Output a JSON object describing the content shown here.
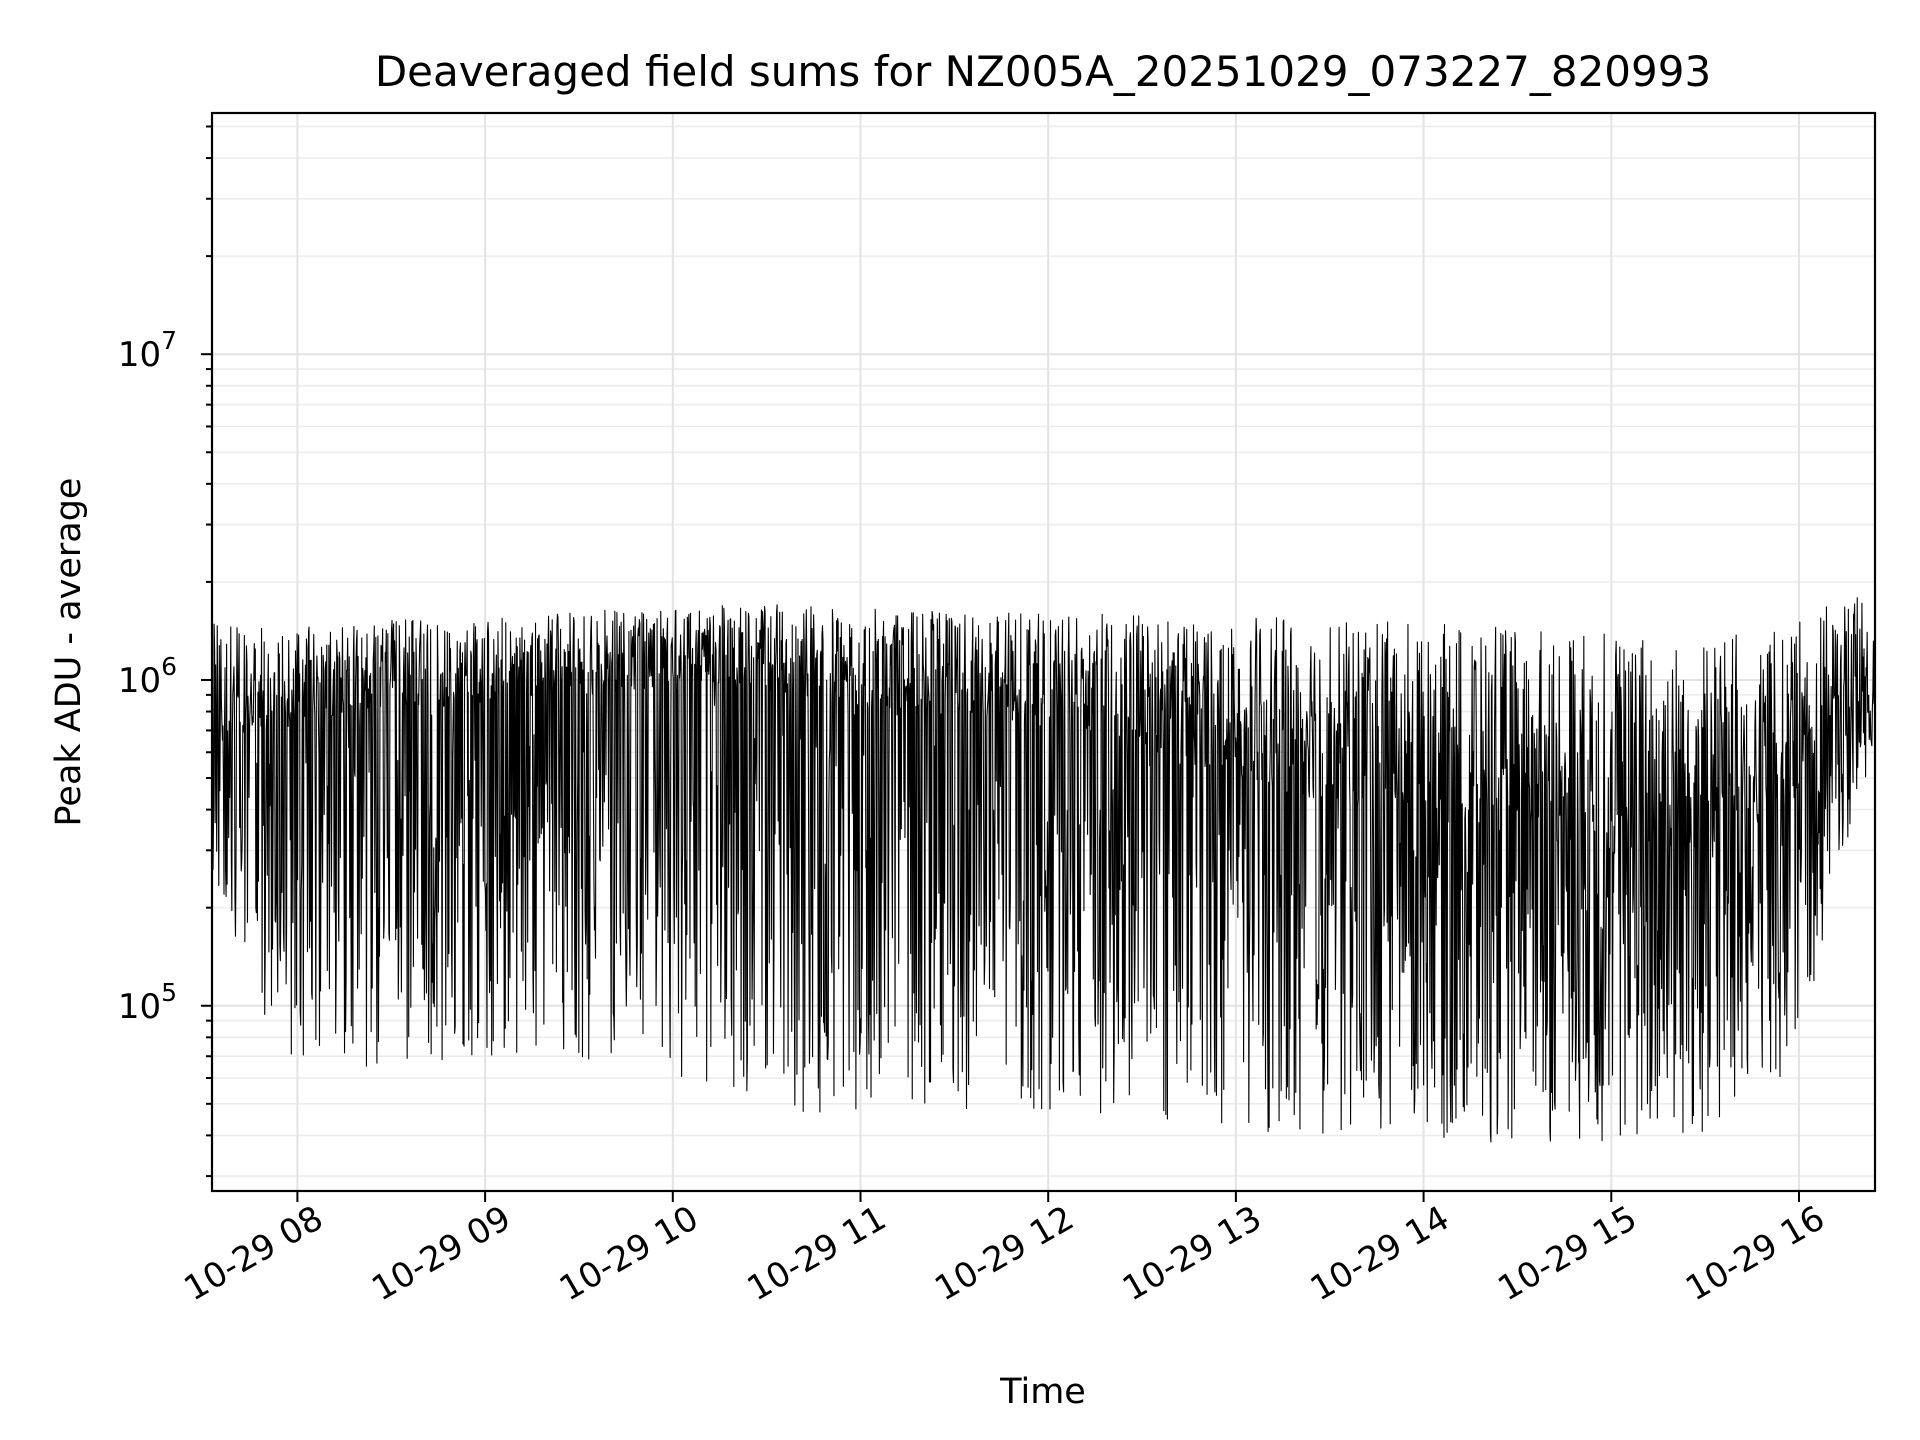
{
  "chart_data": {
    "type": "line",
    "title": "Deaveraged field sums for NZ005A_20251029_073227_820993",
    "xlabel": "Time",
    "ylabel": "Peak ADU - average",
    "yscale": "log",
    "ylim": [
      27000,
      55000000
    ],
    "xlim_hours": [
      7.545,
      16.405
    ],
    "x_tick_labels": [
      "10-29 08",
      "10-29 09",
      "10-29 10",
      "10-29 11",
      "10-29 12",
      "10-29 13",
      "10-29 14",
      "10-29 15",
      "10-29 16"
    ],
    "x_tick_hours": [
      8,
      9,
      10,
      11,
      12,
      13,
      14,
      15,
      16
    ],
    "y_ticks": [
      {
        "value": 100000,
        "base": "10",
        "exponent": "5"
      },
      {
        "value": 1000000,
        "base": "10",
        "exponent": "6"
      },
      {
        "value": 10000000,
        "base": "10",
        "exponent": "7"
      }
    ],
    "grid": true,
    "line_color": "#000000",
    "series": [
      {
        "name": "deaveraged field sum",
        "sample_interval_hours": 0.00278,
        "x_start_hours": 7.545,
        "x_end_hours": 16.405,
        "envelope": [
          {
            "hour": 7.545,
            "upper": 1600000,
            "lower": 250000,
            "typical": 850000
          },
          {
            "hour": 7.9,
            "upper": 1500000,
            "lower": 65000,
            "typical": 900000
          },
          {
            "hour": 8.5,
            "upper": 1600000,
            "lower": 65000,
            "typical": 1000000
          },
          {
            "hour": 9.0,
            "upper": 1600000,
            "lower": 70000,
            "typical": 1050000
          },
          {
            "hour": 9.5,
            "upper": 1700000,
            "lower": 65000,
            "typical": 1100000
          },
          {
            "hour": 9.9,
            "upper": 1700000,
            "lower": 80000,
            "typical": 1150000
          },
          {
            "hour": 10.0,
            "upper": 1750000,
            "lower": 60000,
            "typical": 1200000
          },
          {
            "hour": 10.5,
            "upper": 1800000,
            "lower": 47000,
            "typical": 1150000
          },
          {
            "hour": 11.0,
            "upper": 1750000,
            "lower": 47000,
            "typical": 1050000
          },
          {
            "hour": 11.5,
            "upper": 1700000,
            "lower": 48000,
            "typical": 1000000
          },
          {
            "hour": 12.0,
            "upper": 1700000,
            "lower": 48000,
            "typical": 950000
          },
          {
            "hour": 12.5,
            "upper": 1700000,
            "lower": 45000,
            "typical": 850000
          },
          {
            "hour": 13.0,
            "upper": 1700000,
            "lower": 40000,
            "typical": 750000
          },
          {
            "hour": 13.5,
            "upper": 1650000,
            "lower": 40000,
            "typical": 650000
          },
          {
            "hour": 14.0,
            "upper": 1650000,
            "lower": 38000,
            "typical": 600000
          },
          {
            "hour": 14.5,
            "upper": 1600000,
            "lower": 38000,
            "typical": 550000
          },
          {
            "hour": 15.0,
            "upper": 1550000,
            "lower": 38000,
            "typical": 500000
          },
          {
            "hour": 15.5,
            "upper": 1500000,
            "lower": 40000,
            "typical": 500000
          },
          {
            "hour": 15.9,
            "upper": 1550000,
            "lower": 55000,
            "typical": 600000
          },
          {
            "hour": 16.1,
            "upper": 1750000,
            "lower": 130000,
            "typical": 800000
          },
          {
            "hour": 16.3,
            "upper": 2000000,
            "lower": 400000,
            "typical": 1000000
          },
          {
            "hour": 16.405,
            "upper": 1500000,
            "lower": 600000,
            "typical": 1000000
          }
        ]
      }
    ]
  }
}
